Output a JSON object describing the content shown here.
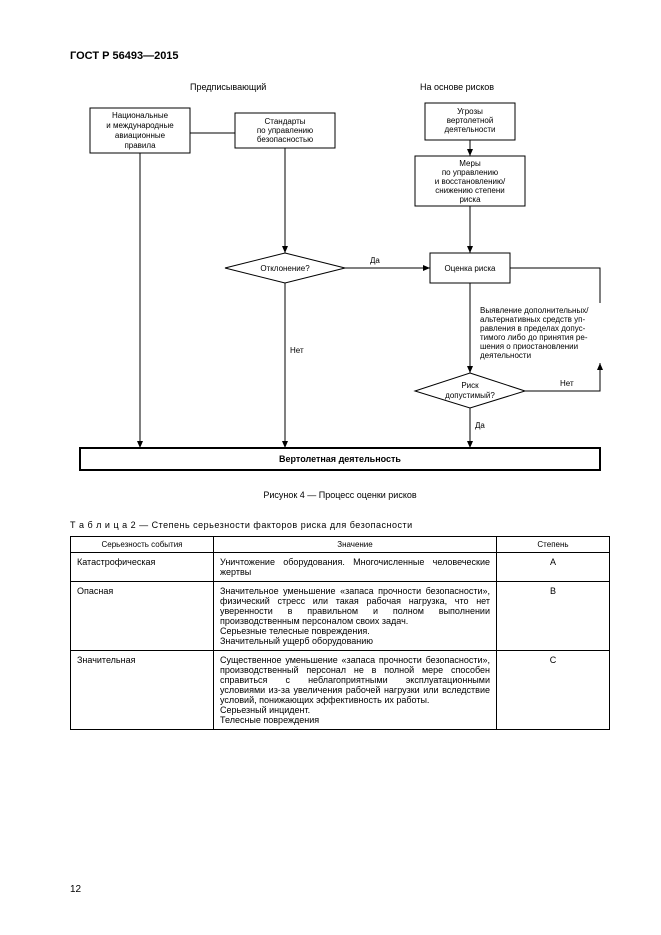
{
  "doc_header": "ГОСТ Р 56493—2015",
  "labels": {
    "prescriptive": "Предписывающий",
    "risk_based": "На основе рисков"
  },
  "flow": {
    "n1": [
      "Национальные",
      "и международные",
      "авиационные",
      "правила"
    ],
    "n2": [
      "Стандарты",
      "по управлению",
      "безопасностью"
    ],
    "n3": [
      "Угрозы",
      "вертолетной",
      "деятельности"
    ],
    "n4": [
      "Меры",
      "по управлению",
      "и восстановлению/",
      "снижению степени",
      "риска"
    ],
    "d1": "Отклонение?",
    "n5": "Оценка риска",
    "note": [
      "Выявление дополнительных/",
      "альтернативных средств уп-",
      "равления в пределах допус-",
      "тимого либо до принятия ре-",
      "шения о приостановлении",
      "деятельности"
    ],
    "d2": [
      "Риск",
      "допустимый?"
    ],
    "final": "Вертолетная деятельность",
    "yes": "Да",
    "no": "Нет"
  },
  "caption": "Рисунок 4 — Процесс оценки рисков",
  "table_caption": "Т а б л и ц а   2 — Степень серьезности факторов риска для безопасности",
  "table": {
    "headers": [
      "Серьезность события",
      "Значение",
      "Степень"
    ],
    "rows": [
      {
        "c1": "Катастрофическая",
        "c2": "Уничтожение оборудования. Много­численные человеческие жертвы",
        "c3": "A"
      },
      {
        "c1": "Опасная",
        "c2": "Значительное уменьшение «запаса прочности безопасности», физиче­ский стресс или такая рабочая нагруз­ка, что нет уверенности в правильном и полном выполнении производствен­ным персоналом своих задач.\nСерьезные телесные повреждения.\nЗначительный ущерб оборудованию",
        "c3": "B"
      },
      {
        "c1": "Значительная",
        "c2": "Существенное уменьшение «запаса прочности безопасности», произ­водственный персонал не в полной мере способен справиться с небла­гоприятными эксплуатационными условиями из-за увеличения рабо­чей нагрузки или вследствие усло­вий, понижающих эффективность их работы.\nСерьезный инцидент.\nТелесные повреждения",
        "c3": "C"
      }
    ]
  },
  "page_num": "12",
  "colors": {
    "text": "#000000",
    "bg": "#ffffff",
    "stroke": "#000000"
  }
}
